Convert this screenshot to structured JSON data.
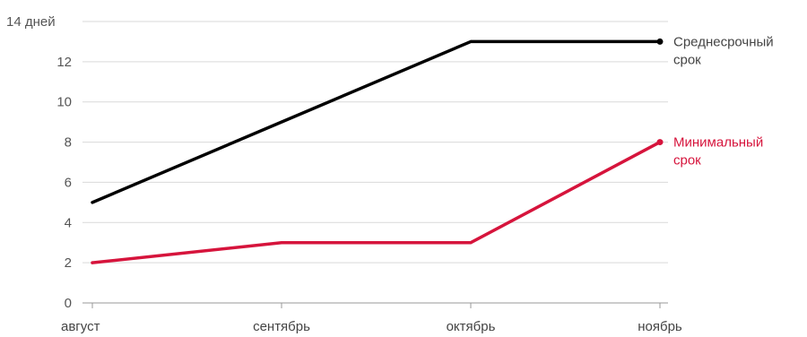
{
  "chart_data": {
    "type": "line",
    "categories": [
      "август",
      "сентябрь",
      "октябрь",
      "ноябрь"
    ],
    "y_ticks": [
      {
        "value": 0,
        "label": "0"
      },
      {
        "value": 2,
        "label": "2"
      },
      {
        "value": 4,
        "label": "4"
      },
      {
        "value": 6,
        "label": "6"
      },
      {
        "value": 8,
        "label": "8"
      },
      {
        "value": 10,
        "label": "10"
      },
      {
        "value": 12,
        "label": "12"
      },
      {
        "value": 14,
        "label": "14 дней"
      }
    ],
    "ylim": [
      0,
      14
    ],
    "grid": true,
    "legend": "inline-right",
    "series": [
      {
        "name": "Среднесрочный срок",
        "label_lines": [
          "Среднесрочный",
          "срок"
        ],
        "color": "#000000",
        "values": [
          5,
          9,
          13,
          13
        ]
      },
      {
        "name": "Минимальный срок",
        "label_lines": [
          "Минимальный",
          "срок"
        ],
        "color": "#d6143c",
        "values": [
          2,
          3,
          3,
          8
        ]
      }
    ]
  }
}
